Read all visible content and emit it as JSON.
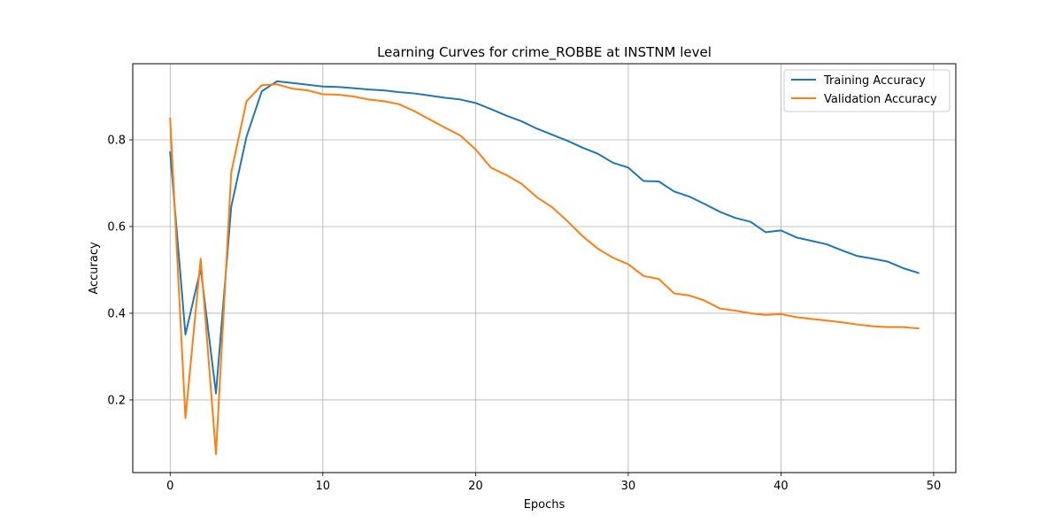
{
  "chart_data": {
    "type": "line",
    "title": "Learning Curves for crime_ROBBE at INSTNM level",
    "xlabel": "Epochs",
    "ylabel": "Accuracy",
    "xlim": [
      -2.45,
      51.45
    ],
    "ylim": [
      0.0325,
      0.9755
    ],
    "xticks": [
      0,
      10,
      20,
      30,
      40,
      50
    ],
    "yticks": [
      0.2,
      0.4,
      0.6,
      0.8
    ],
    "grid": true,
    "legend_position": "top-right",
    "x": [
      0,
      1,
      2,
      3,
      4,
      5,
      6,
      7,
      8,
      9,
      10,
      11,
      12,
      13,
      14,
      15,
      16,
      17,
      18,
      19,
      20,
      21,
      22,
      23,
      24,
      25,
      26,
      27,
      28,
      29,
      30,
      31,
      32,
      33,
      34,
      35,
      36,
      37,
      38,
      39,
      40,
      41,
      42,
      43,
      44,
      45,
      46,
      47,
      48,
      49
    ],
    "series": [
      {
        "name": "Training Accuracy",
        "color": "#1f77b4",
        "values": [
          0.771,
          0.351,
          0.503,
          0.215,
          0.646,
          0.807,
          0.912,
          0.935,
          0.931,
          0.927,
          0.923,
          0.922,
          0.919,
          0.916,
          0.914,
          0.91,
          0.907,
          0.902,
          0.897,
          0.893,
          0.885,
          0.871,
          0.856,
          0.843,
          0.826,
          0.812,
          0.798,
          0.782,
          0.768,
          0.747,
          0.736,
          0.705,
          0.704,
          0.681,
          0.669,
          0.652,
          0.634,
          0.62,
          0.611,
          0.587,
          0.591,
          0.575,
          0.567,
          0.559,
          0.545,
          0.532,
          0.526,
          0.519,
          0.504,
          0.493
        ]
      },
      {
        "name": "Validation Accuracy",
        "color": "#ff7f0e",
        "values": [
          0.849,
          0.158,
          0.526,
          0.075,
          0.725,
          0.889,
          0.926,
          0.928,
          0.918,
          0.914,
          0.905,
          0.904,
          0.9,
          0.893,
          0.889,
          0.882,
          0.866,
          0.847,
          0.828,
          0.81,
          0.778,
          0.736,
          0.719,
          0.699,
          0.668,
          0.645,
          0.613,
          0.578,
          0.549,
          0.528,
          0.513,
          0.486,
          0.479,
          0.446,
          0.441,
          0.429,
          0.411,
          0.406,
          0.4,
          0.396,
          0.398,
          0.391,
          0.387,
          0.383,
          0.379,
          0.374,
          0.37,
          0.368,
          0.368,
          0.365
        ]
      }
    ]
  }
}
